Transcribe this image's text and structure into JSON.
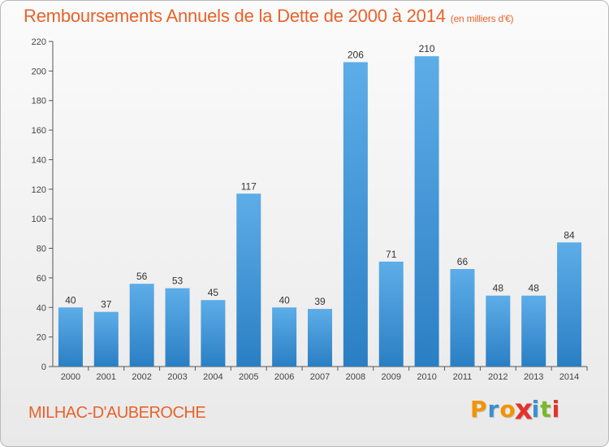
{
  "header": {
    "title": "Remboursements Annuels de la Dette de 2000 à 2014",
    "unit": "(en milliers d'€)"
  },
  "footer": {
    "commune": "MILHAC-D'AUBEROCHE",
    "brand_letters": [
      "P",
      "r",
      "o",
      "x",
      "i",
      "t",
      "i"
    ]
  },
  "colors": {
    "title": "#e8622a",
    "bar_top": "#5dade8",
    "bar_bottom": "#2a7fc4",
    "brand": [
      "#f29400",
      "#3a8fd0",
      "#f29400",
      "#e4322b",
      "#3a8fd0",
      "#7ab929",
      "#e4322b"
    ]
  },
  "chart_data": {
    "type": "bar",
    "title": "Remboursements Annuels de la Dette de 2000 à 2014",
    "categories": [
      "2000",
      "2001",
      "2002",
      "2003",
      "2004",
      "2005",
      "2006",
      "2007",
      "2008",
      "2009",
      "2010",
      "2011",
      "2012",
      "2013",
      "2014"
    ],
    "values": [
      40,
      37,
      56,
      53,
      45,
      117,
      40,
      39,
      206,
      71,
      210,
      66,
      48,
      48,
      84
    ],
    "ylim": [
      0,
      220
    ],
    "yticks": [
      0,
      20,
      40,
      60,
      80,
      100,
      120,
      140,
      160,
      180,
      200,
      220
    ],
    "grid": false,
    "legend": "none"
  }
}
